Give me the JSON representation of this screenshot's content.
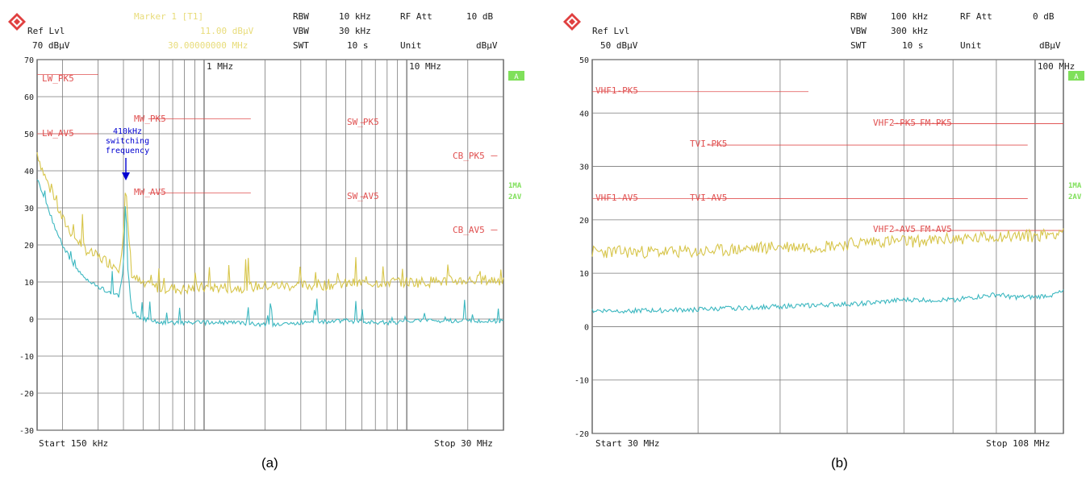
{
  "colors": {
    "pk": "#d7c54a",
    "av": "#3bb7c0",
    "limit": "#e05050",
    "grid": "#7a7a7a",
    "badge": "#7fe05a",
    "annot": "#0000d0"
  },
  "panel_a": {
    "caption": "(a)",
    "header": {
      "ref_lvl_label": "Ref Lvl",
      "ref_lvl_value": "70 dBµV",
      "marker_label": "Marker 1 [T1]",
      "marker_level": "11.00 dBµV",
      "marker_freq": "30.00000000 MHz",
      "rbw_label": "RBW",
      "rbw_value": "10 kHz",
      "vbw_label": "VBW",
      "vbw_value": "30 kHz",
      "swt_label": "SWT",
      "swt_value": "10 s",
      "rfatt_label": "RF Att",
      "rfatt_value": "10 dB",
      "unit_label": "Unit",
      "unit_value": "dBµV"
    },
    "start_label": "Start 150 kHz",
    "stop_label": "Stop 30 MHz",
    "badge_a": "A",
    "trace_badges": [
      "1MA",
      "2AV"
    ],
    "annotation": [
      "410kHz",
      "switching",
      "frequency"
    ],
    "chart_data": {
      "type": "line",
      "x_scale": "log",
      "xlim_mhz": [
        0.15,
        30
      ],
      "ylim": [
        -30,
        70
      ],
      "yticks": [
        70,
        60,
        50,
        40,
        30,
        20,
        10,
        0,
        -10,
        -20,
        -30
      ],
      "ylabel": "",
      "xlabel": "",
      "xtick_labels": [
        {
          "mhz": 1,
          "label": "1 MHz"
        },
        {
          "mhz": 10,
          "label": "10 MHz"
        }
      ],
      "limit_lines": [
        {
          "label": "LW_PK5",
          "x": [
            0.15,
            0.3
          ],
          "y": 66
        },
        {
          "label": "LW_AV5",
          "x": [
            0.15,
            0.3
          ],
          "y": 50
        },
        {
          "label": "MW_PK5",
          "x": [
            0.53,
            1.7
          ],
          "y": 54
        },
        {
          "label": "MW_AV5",
          "x": [
            0.53,
            1.7
          ],
          "y": 34
        },
        {
          "label": "SW_PK5",
          "x": [
            5.9,
            6.2
          ],
          "y": 53
        },
        {
          "label": "SW_AV5",
          "x": [
            5.9,
            6.2
          ],
          "y": 33
        },
        {
          "label": "CB_PK5",
          "x": [
            26,
            28
          ],
          "y": 44
        },
        {
          "label": "CB_AV5",
          "x": [
            26,
            28
          ],
          "y": 24
        }
      ],
      "series": [
        {
          "key": "pk",
          "points": [
            [
              0.15,
              45
            ],
            [
              0.16,
              40
            ],
            [
              0.18,
              33
            ],
            [
              0.2,
              27
            ],
            [
              0.23,
              22
            ],
            [
              0.27,
              18
            ],
            [
              0.32,
              16
            ],
            [
              0.38,
              14
            ],
            [
              0.4,
              22
            ],
            [
              0.41,
              36
            ],
            [
              0.42,
              26
            ],
            [
              0.44,
              12
            ],
            [
              0.5,
              9
            ],
            [
              0.6,
              8.5
            ],
            [
              0.8,
              8
            ],
            [
              1.0,
              8.5
            ],
            [
              1.5,
              8.5
            ],
            [
              2,
              9
            ],
            [
              3,
              9
            ],
            [
              5,
              9.5
            ],
            [
              8,
              10
            ],
            [
              12,
              10
            ],
            [
              20,
              10.5
            ],
            [
              30,
              10.5
            ]
          ]
        },
        {
          "key": "av",
          "points": [
            [
              0.15,
              38
            ],
            [
              0.16,
              34
            ],
            [
              0.18,
              26
            ],
            [
              0.2,
              20
            ],
            [
              0.23,
              14
            ],
            [
              0.27,
              10
            ],
            [
              0.32,
              8
            ],
            [
              0.38,
              6
            ],
            [
              0.4,
              14
            ],
            [
              0.41,
              34
            ],
            [
              0.42,
              14
            ],
            [
              0.44,
              2
            ],
            [
              0.5,
              0
            ],
            [
              0.6,
              -1
            ],
            [
              0.8,
              -1
            ],
            [
              1.0,
              -1
            ],
            [
              1.5,
              -1
            ],
            [
              2,
              -1.5
            ],
            [
              3,
              -1
            ],
            [
              5,
              -0.5
            ],
            [
              8,
              -1
            ],
            [
              12,
              -0.5
            ],
            [
              20,
              -0.5
            ],
            [
              30,
              -0.5
            ]
          ]
        }
      ]
    }
  },
  "panel_b": {
    "caption": "(b)",
    "header": {
      "ref_lvl_label": "Ref Lvl",
      "ref_lvl_value": "50 dBµV",
      "rbw_label": "RBW",
      "rbw_value": "100 kHz",
      "vbw_label": "VBW",
      "vbw_value": "300 kHz",
      "swt_label": "SWT",
      "swt_value": "10 s",
      "rfatt_label": "RF Att",
      "rfatt_value": "0 dB",
      "unit_label": "Unit",
      "unit_value": "dBµV"
    },
    "start_label": "Start 30 MHz",
    "stop_label": "Stop 108 MHz",
    "badge_a": "A",
    "trace_badges": [
      "1MA",
      "2AV"
    ],
    "chart_data": {
      "type": "line",
      "x_scale": "log",
      "xlim_mhz": [
        30,
        108
      ],
      "ylim": [
        -20,
        50
      ],
      "yticks": [
        50,
        40,
        30,
        20,
        10,
        0,
        -10,
        -20
      ],
      "ylabel": "",
      "xlabel": "",
      "xtick_labels": [
        {
          "mhz": 100,
          "label": "100 MHz"
        }
      ],
      "limit_lines": [
        {
          "label": "VHF1-PK5",
          "x": [
            30,
            54
          ],
          "y": 44
        },
        {
          "label": "VHF1-AV5",
          "x": [
            30,
            98
          ],
          "y": 24
        },
        {
          "label": "TVI-PK5",
          "x": [
            41,
            98
          ],
          "y": 34
        },
        {
          "label": "TVI-AV5",
          "x": [
            41,
            98
          ],
          "y": 24
        },
        {
          "label": "VHF2-PK5",
          "x": [
            68,
            108
          ],
          "y": 38
        },
        {
          "label": "FM-PK5",
          "x": [
            76,
            108
          ],
          "y": 38
        },
        {
          "label": "VHF2-AV5",
          "x": [
            68,
            108
          ],
          "y": 18
        },
        {
          "label": "FM-AV5",
          "x": [
            76,
            108
          ],
          "y": 18
        }
      ],
      "series": [
        {
          "key": "pk",
          "points": [
            [
              30,
              14
            ],
            [
              35,
              14
            ],
            [
              40,
              14
            ],
            [
              45,
              14.5
            ],
            [
              50,
              15
            ],
            [
              55,
              15
            ],
            [
              60,
              15.5
            ],
            [
              65,
              16
            ],
            [
              70,
              16
            ],
            [
              75,
              16
            ],
            [
              80,
              16.5
            ],
            [
              85,
              16.5
            ],
            [
              90,
              17
            ],
            [
              95,
              17
            ],
            [
              100,
              17
            ],
            [
              105,
              17.5
            ],
            [
              108,
              18
            ]
          ]
        },
        {
          "key": "av",
          "points": [
            [
              30,
              3
            ],
            [
              35,
              3
            ],
            [
              40,
              3.2
            ],
            [
              45,
              3.5
            ],
            [
              50,
              3.8
            ],
            [
              55,
              4
            ],
            [
              60,
              4.2
            ],
            [
              65,
              4.5
            ],
            [
              70,
              5
            ],
            [
              75,
              5
            ],
            [
              80,
              5
            ],
            [
              85,
              5.5
            ],
            [
              90,
              6
            ],
            [
              95,
              5.5
            ],
            [
              100,
              5.5
            ],
            [
              105,
              6
            ],
            [
              108,
              6.5
            ]
          ]
        }
      ]
    }
  }
}
